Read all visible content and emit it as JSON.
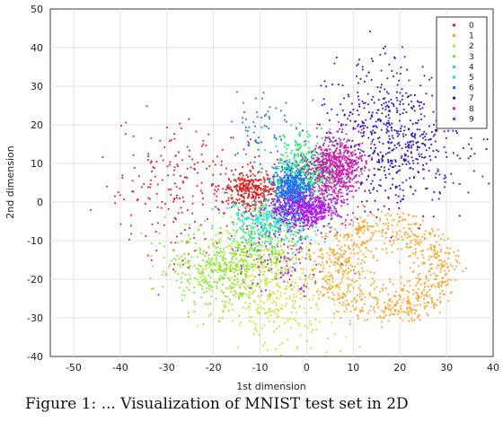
{
  "chart_data": {
    "type": "scatter",
    "title": "",
    "xlabel": "1st dimension",
    "ylabel": "2nd dimension",
    "xlim": [
      -55,
      40
    ],
    "ylim": [
      -40,
      50
    ],
    "xticks": [
      -50,
      -40,
      -30,
      -20,
      -10,
      0,
      10,
      20,
      30,
      40
    ],
    "yticks": [
      -40,
      -30,
      -20,
      -10,
      0,
      10,
      20,
      30,
      40,
      50
    ],
    "grid": true,
    "legend_position": "top-right",
    "series": [
      {
        "name": "0",
        "color": "#e8191b",
        "clusters": [
          {
            "cx": -12,
            "cy": 3,
            "sx": 3,
            "sy": 2.5,
            "n": 320
          },
          {
            "cx": -27,
            "cy": 3,
            "sx": 9,
            "sy": 9,
            "n": 230
          }
        ]
      },
      {
        "name": "1",
        "color": "#ff9f1c",
        "ring": {
          "cx": 17,
          "cy": -17,
          "rx": 15,
          "ry": 14,
          "n": 800
        }
      },
      {
        "name": "2",
        "color": "#c9e41c",
        "clusters": [
          {
            "cx": -5,
            "cy": -23,
            "sx": 6,
            "sy": 7,
            "n": 300
          },
          {
            "cx": -12,
            "cy": -15,
            "sx": 6,
            "sy": 6,
            "n": 150
          }
        ]
      },
      {
        "name": "3",
        "color": "#7ee819",
        "clusters": [
          {
            "cx": -18,
            "cy": -18,
            "sx": 6,
            "sy": 5,
            "n": 420
          },
          {
            "cx": -8,
            "cy": -10,
            "sx": 4,
            "sy": 4,
            "n": 150
          }
        ]
      },
      {
        "name": "4",
        "color": "#19e86a",
        "clusters": [
          {
            "cx": -1,
            "cy": 8,
            "sx": 3,
            "sy": 5,
            "n": 350
          },
          {
            "cx": 3,
            "cy": 8,
            "sx": 3,
            "sy": 3,
            "n": 120
          }
        ]
      },
      {
        "name": "5",
        "color": "#16e8d2",
        "clusters": [
          {
            "cx": -7,
            "cy": -5,
            "sx": 5,
            "sy": 3,
            "n": 380
          }
        ]
      },
      {
        "name": "6",
        "color": "#1c74f0",
        "clusters": [
          {
            "cx": -3,
            "cy": 3,
            "sx": 2,
            "sy": 3,
            "n": 560
          },
          {
            "cx": -10,
            "cy": 20,
            "sx": 3,
            "sy": 5,
            "n": 60
          }
        ]
      },
      {
        "name": "7",
        "color": "#2a14d4",
        "clusters": [
          {
            "cx": 19,
            "cy": 17,
            "sx": 7,
            "sy": 9,
            "n": 620
          }
        ]
      },
      {
        "name": "8",
        "color": "#d418b0",
        "clusters": [
          {
            "cx": 6,
            "cy": 9,
            "sx": 3,
            "sy": 4,
            "n": 620
          }
        ]
      },
      {
        "name": "9",
        "color": "#b516ec",
        "clusters": [
          {
            "cx": 0,
            "cy": -2,
            "sx": 3.5,
            "sy": 2,
            "n": 520
          },
          {
            "cx": -5,
            "cy": -13,
            "sx": 6,
            "sy": 6,
            "n": 140
          }
        ]
      }
    ]
  },
  "caption": "Figure 1: ... Visualization of MNIST test set in 2D"
}
